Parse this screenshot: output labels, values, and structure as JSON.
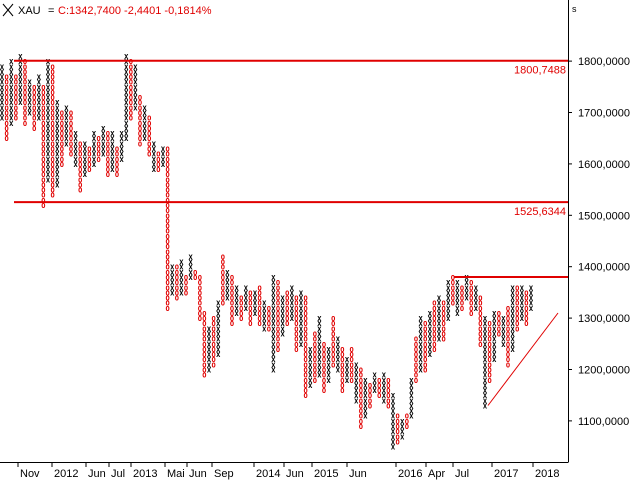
{
  "window": {
    "symbol": "XAU",
    "quote_text": "C:1342,7400 -2,4401 -0,1814%",
    "corner_label": "s"
  },
  "colors": {
    "background": "#ffffff",
    "axis": "#000000",
    "x_mark": "#000000",
    "o_mark": "#e00000",
    "level_line": "#e00000",
    "level_text": "#e00000",
    "header_text": "#e00000"
  },
  "chart_data": {
    "type": "point-and-figure",
    "y_axis": {
      "position": "right",
      "range": [
        1020,
        1880
      ],
      "ticks": [
        {
          "value": 1100,
          "label": "1100,0000"
        },
        {
          "value": 1200,
          "label": "1200,0000"
        },
        {
          "value": 1300,
          "label": "1300,0000"
        },
        {
          "value": 1400,
          "label": "1400,0000"
        },
        {
          "value": 1500,
          "label": "1500,0000"
        },
        {
          "value": 1600,
          "label": "1600,0000"
        },
        {
          "value": 1700,
          "label": "1700,0000"
        },
        {
          "value": 1800,
          "label": "1800,0000"
        }
      ]
    },
    "x_axis": {
      "labels": [
        "Nov",
        "2012",
        "Jun",
        "Jul",
        "2013",
        "Mai",
        "Jun",
        "Sep",
        "2014",
        "Jun",
        "2015",
        "Jun",
        "2016",
        "Apr",
        "Jul",
        "2017",
        "2018"
      ]
    },
    "horizontal_levels": [
      {
        "value": 1800.7488,
        "label": "1800,7488"
      },
      {
        "value": 1525.6344,
        "label": "1525,6344"
      }
    ],
    "resistance_segment": {
      "y": 1380
    },
    "support_trendline": {
      "from": 1130,
      "to": 1310
    },
    "box_size": 10,
    "columns": [
      [
        1690,
        1790,
        "X"
      ],
      [
        1650,
        1770,
        "O"
      ],
      [
        1680,
        1800,
        "X"
      ],
      [
        1690,
        1770,
        "O"
      ],
      [
        1720,
        1810,
        "X"
      ],
      [
        1680,
        1800,
        "O"
      ],
      [
        1700,
        1760,
        "X"
      ],
      [
        1670,
        1750,
        "O"
      ],
      [
        1690,
        1770,
        "X"
      ],
      [
        1520,
        1750,
        "O"
      ],
      [
        1570,
        1800,
        "X"
      ],
      [
        1540,
        1790,
        "O"
      ],
      [
        1560,
        1720,
        "X"
      ],
      [
        1600,
        1700,
        "O"
      ],
      [
        1640,
        1710,
        "X"
      ],
      [
        1620,
        1700,
        "O"
      ],
      [
        1600,
        1660,
        "X"
      ],
      [
        1550,
        1640,
        "O"
      ],
      [
        1580,
        1640,
        "X"
      ],
      [
        1590,
        1630,
        "O"
      ],
      [
        1600,
        1660,
        "X"
      ],
      [
        1610,
        1650,
        "O"
      ],
      [
        1620,
        1670,
        "X"
      ],
      [
        1580,
        1660,
        "O"
      ],
      [
        1590,
        1660,
        "X"
      ],
      [
        1580,
        1630,
        "O"
      ],
      [
        1610,
        1660,
        "X"
      ],
      [
        1650,
        1810,
        "X"
      ],
      [
        1690,
        1800,
        "O"
      ],
      [
        1710,
        1790,
        "X"
      ],
      [
        1640,
        1730,
        "O"
      ],
      [
        1650,
        1710,
        "X"
      ],
      [
        1620,
        1690,
        "O"
      ],
      [
        1590,
        1640,
        "X"
      ],
      [
        1590,
        1620,
        "O"
      ],
      [
        1600,
        1630,
        "X"
      ],
      [
        1320,
        1630,
        "O"
      ],
      [
        1350,
        1400,
        "X"
      ],
      [
        1340,
        1400,
        "O"
      ],
      [
        1350,
        1410,
        "X"
      ],
      [
        1350,
        1380,
        "O"
      ],
      [
        1380,
        1420,
        "X"
      ],
      [
        1380,
        1390,
        "O"
      ],
      [
        1300,
        1380,
        "O"
      ],
      [
        1190,
        1310,
        "O"
      ],
      [
        1200,
        1280,
        "X"
      ],
      [
        1210,
        1300,
        "O"
      ],
      [
        1230,
        1330,
        "X"
      ],
      [
        1330,
        1420,
        "O"
      ],
      [
        1340,
        1390,
        "X"
      ],
      [
        1290,
        1380,
        "O"
      ],
      [
        1310,
        1360,
        "X"
      ],
      [
        1300,
        1340,
        "O"
      ],
      [
        1320,
        1360,
        "X"
      ],
      [
        1290,
        1350,
        "O"
      ],
      [
        1310,
        1350,
        "X"
      ],
      [
        1290,
        1360,
        "O"
      ],
      [
        1280,
        1330,
        "X"
      ],
      [
        1280,
        1320,
        "O"
      ],
      [
        1200,
        1380,
        "X"
      ],
      [
        1240,
        1370,
        "O"
      ],
      [
        1270,
        1340,
        "X"
      ],
      [
        1290,
        1350,
        "O"
      ],
      [
        1300,
        1360,
        "X"
      ],
      [
        1240,
        1340,
        "O"
      ],
      [
        1250,
        1350,
        "X"
      ],
      [
        1150,
        1340,
        "O"
      ],
      [
        1170,
        1240,
        "X"
      ],
      [
        1180,
        1270,
        "O"
      ],
      [
        1190,
        1300,
        "X"
      ],
      [
        1160,
        1250,
        "O"
      ],
      [
        1180,
        1240,
        "X"
      ],
      [
        1210,
        1300,
        "O"
      ],
      [
        1200,
        1260,
        "X"
      ],
      [
        1160,
        1240,
        "O"
      ],
      [
        1180,
        1220,
        "X"
      ],
      [
        1180,
        1240,
        "O"
      ],
      [
        1140,
        1210,
        "X"
      ],
      [
        1090,
        1200,
        "O"
      ],
      [
        1110,
        1180,
        "X"
      ],
      [
        1130,
        1170,
        "O"
      ],
      [
        1160,
        1190,
        "X"
      ],
      [
        1150,
        1180,
        "O"
      ],
      [
        1140,
        1190,
        "X"
      ],
      [
        1130,
        1180,
        "O"
      ],
      [
        1050,
        1150,
        "X"
      ],
      [
        1060,
        1110,
        "O"
      ],
      [
        1070,
        1100,
        "X"
      ],
      [
        1090,
        1110,
        "O"
      ],
      [
        1110,
        1180,
        "X"
      ],
      [
        1180,
        1260,
        "O"
      ],
      [
        1200,
        1300,
        "X"
      ],
      [
        1200,
        1290,
        "O"
      ],
      [
        1230,
        1310,
        "X"
      ],
      [
        1240,
        1330,
        "O"
      ],
      [
        1260,
        1340,
        "X"
      ],
      [
        1260,
        1330,
        "O"
      ],
      [
        1300,
        1370,
        "X"
      ],
      [
        1330,
        1380,
        "O"
      ],
      [
        1310,
        1370,
        "X"
      ],
      [
        1320,
        1360,
        "O"
      ],
      [
        1340,
        1380,
        "X"
      ],
      [
        1310,
        1370,
        "O"
      ],
      [
        1320,
        1360,
        "X"
      ],
      [
        1250,
        1340,
        "O"
      ],
      [
        1130,
        1300,
        "X"
      ],
      [
        1180,
        1290,
        "O"
      ],
      [
        1220,
        1310,
        "X"
      ],
      [
        1270,
        1310,
        "O"
      ],
      [
        1250,
        1300,
        "X"
      ],
      [
        1210,
        1320,
        "O"
      ],
      [
        1240,
        1360,
        "X"
      ],
      [
        1280,
        1360,
        "O"
      ],
      [
        1300,
        1360,
        "X"
      ],
      [
        1290,
        1350,
        "O"
      ],
      [
        1320,
        1360,
        "X"
      ]
    ]
  }
}
